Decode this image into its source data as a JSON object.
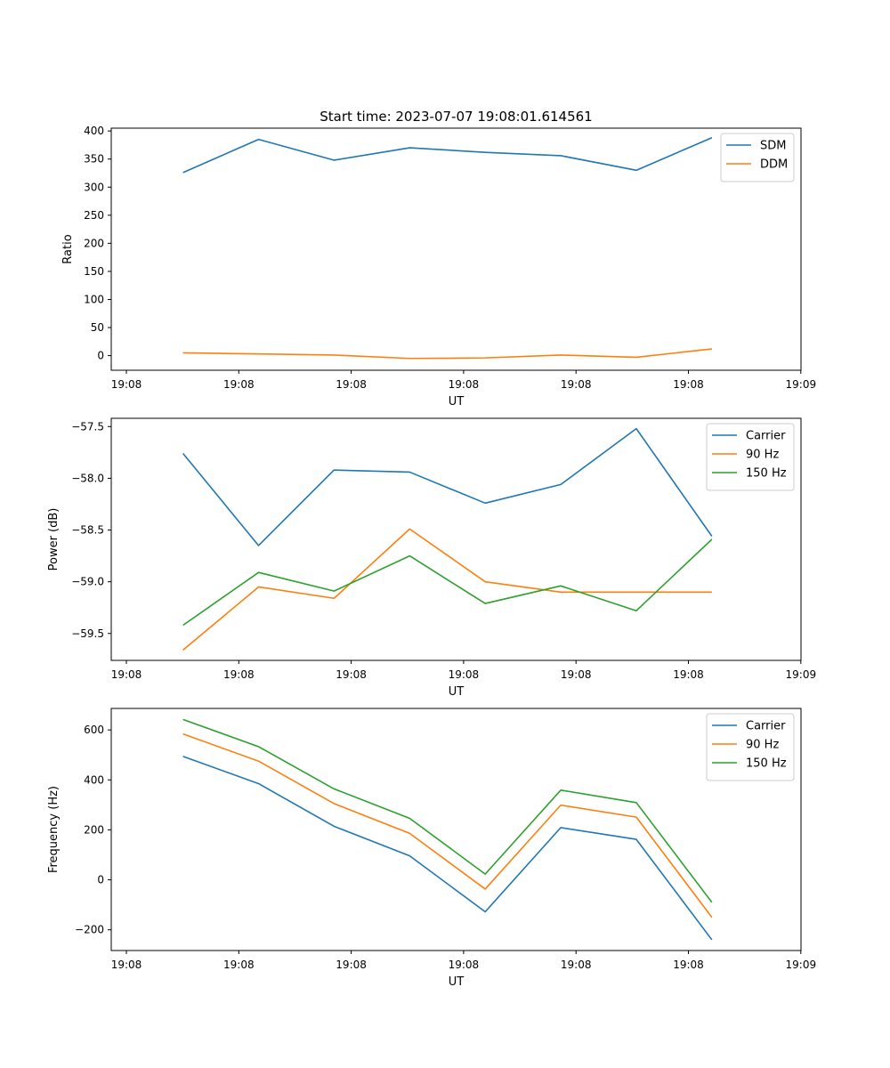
{
  "figure": {
    "title": "Start time: 2023-07-07 19:08:01.614561"
  },
  "chart_data": [
    {
      "type": "line",
      "xlabel": "UT",
      "ylabel": "Ratio",
      "x_tick_labels": [
        "19:08",
        "19:08",
        "19:08",
        "19:08",
        "19:08",
        "19:08",
        "19:09"
      ],
      "y_ticks": [
        0,
        50,
        100,
        150,
        200,
        250,
        300,
        350,
        400
      ],
      "ylim": [
        -26,
        405
      ],
      "x": [
        1,
        2,
        3,
        4,
        5,
        6,
        7,
        8
      ],
      "xlim": [
        0.05,
        9.18
      ],
      "legend_position": "upper right",
      "series": [
        {
          "name": "SDM",
          "color": "#1f77b4",
          "values": [
            326,
            385,
            348,
            370,
            362,
            356,
            330,
            388
          ]
        },
        {
          "name": "DDM",
          "color": "#ff7f0e",
          "values": [
            5,
            3,
            1,
            -5,
            -4,
            1,
            -3,
            12
          ]
        }
      ]
    },
    {
      "type": "line",
      "xlabel": "UT",
      "ylabel": "Power (dB)",
      "x_tick_labels": [
        "19:08",
        "19:08",
        "19:08",
        "19:08",
        "19:08",
        "19:08",
        "19:09"
      ],
      "y_ticks": [
        -59.5,
        -59.0,
        -58.5,
        -58.0,
        -57.5
      ],
      "y_tick_labels": [
        "−59.5",
        "−59.0",
        "−58.5",
        "−58.0",
        "−57.5"
      ],
      "ylim": [
        -59.76,
        -57.42
      ],
      "x": [
        1,
        2,
        3,
        4,
        5,
        6,
        7,
        8
      ],
      "xlim": [
        0.05,
        9.18
      ],
      "legend_position": "upper right",
      "series": [
        {
          "name": "Carrier",
          "color": "#1f77b4",
          "values": [
            -57.76,
            -58.65,
            -57.92,
            -57.94,
            -58.24,
            -58.06,
            -57.52,
            -58.56
          ]
        },
        {
          "name": "90 Hz",
          "color": "#ff7f0e",
          "values": [
            -59.66,
            -59.05,
            -59.16,
            -58.49,
            -59.0,
            -59.1,
            -59.1,
            -59.1
          ]
        },
        {
          "name": "150 Hz",
          "color": "#2ca02c",
          "values": [
            -59.42,
            -58.91,
            -59.09,
            -58.75,
            -59.21,
            -59.04,
            -59.28,
            -58.59
          ]
        }
      ]
    },
    {
      "type": "line",
      "xlabel": "UT",
      "ylabel": "Frequency (Hz)",
      "x_tick_labels": [
        "19:08",
        "19:08",
        "19:08",
        "19:08",
        "19:08",
        "19:08",
        "19:09"
      ],
      "y_ticks": [
        -200,
        0,
        200,
        400,
        600
      ],
      "y_tick_labels": [
        "−200",
        "0",
        "200",
        "400",
        "600"
      ],
      "ylim": [
        -283,
        686
      ],
      "x": [
        1,
        2,
        3,
        4,
        5,
        6,
        7,
        8
      ],
      "xlim": [
        0.05,
        9.18
      ],
      "legend_position": "upper right",
      "series": [
        {
          "name": "Carrier",
          "color": "#1f77b4",
          "values": [
            494,
            385,
            214,
            96,
            -128,
            209,
            162,
            -240
          ]
        },
        {
          "name": "90 Hz",
          "color": "#ff7f0e",
          "values": [
            584,
            475,
            305,
            186,
            -37,
            299,
            251,
            -150
          ]
        },
        {
          "name": "150 Hz",
          "color": "#2ca02c",
          "values": [
            642,
            533,
            364,
            246,
            23,
            359,
            309,
            -90
          ]
        }
      ]
    }
  ]
}
